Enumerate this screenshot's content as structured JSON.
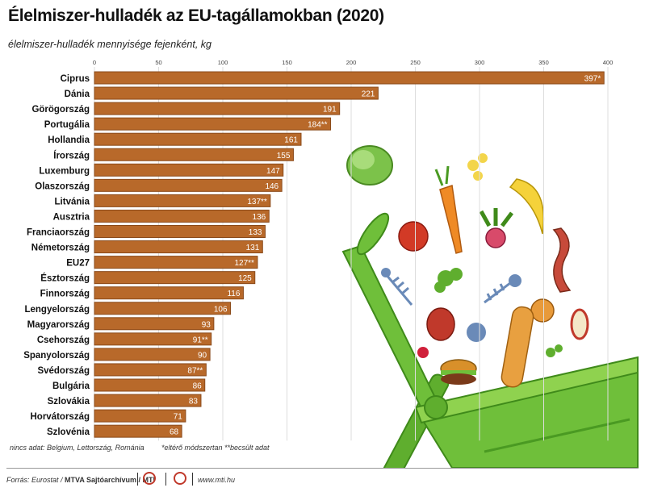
{
  "title": "Élelmiszer-hulladék az EU-tagállamokban (2020)",
  "subtitle": "élelmiszer-hulladék mennyisége fejenként, kg",
  "notes": {
    "nodata": "nincs adat: Belgium, Lettország, Románia",
    "different_method": "*eltérő módszertan",
    "estimated": "**becsült adat"
  },
  "footer": {
    "source_prefix": "Forrás: Eurostat / ",
    "source_bold": "MTVA Sajtóarchívum / MTI",
    "url": "www.mti.hu"
  },
  "colors": {
    "bar": "#b8692a",
    "bar_border": "#8a4a1a",
    "grid": "#dddddd",
    "bin_green": "#6fbf3a",
    "bin_dark": "#4a9a22"
  },
  "chart_data": {
    "type": "bar",
    "orientation": "horizontal",
    "title": "Élelmiszer-hulladék az EU-tagállamokban (2020)",
    "subtitle": "élelmiszer-hulladék mennyisége fejenként, kg",
    "xlim": [
      0,
      400
    ],
    "ticks": [
      0,
      50,
      100,
      150,
      200,
      250,
      300,
      350,
      400
    ],
    "grid": true,
    "categories": [
      "Ciprus",
      "Dánia",
      "Görögország",
      "Portugália",
      "Hollandia",
      "Írország",
      "Luxemburg",
      "Olaszország",
      "Litvánia",
      "Ausztria",
      "Franciaország",
      "Németország",
      "EU27",
      "Észtország",
      "Finnország",
      "Lengyelország",
      "Magyarország",
      "Csehország",
      "Spanyolország",
      "Svédország",
      "Bulgária",
      "Szlovákia",
      "Horvátország",
      "Szlovénia"
    ],
    "values": [
      397,
      221,
      191,
      184,
      161,
      155,
      147,
      146,
      137,
      136,
      133,
      131,
      127,
      125,
      116,
      106,
      93,
      91,
      90,
      87,
      86,
      83,
      71,
      68
    ],
    "labels": [
      "397*",
      "221",
      "191",
      "184**",
      "161",
      "155",
      "147",
      "146",
      "137**",
      "136",
      "133",
      "131",
      "127**",
      "125",
      "116",
      "106",
      "93",
      "91**",
      "90",
      "87**",
      "86",
      "83",
      "71",
      "68"
    ]
  }
}
